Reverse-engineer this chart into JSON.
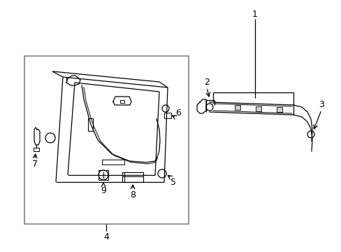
{
  "bg_color": "#ffffff",
  "line_color": "#000000",
  "box_color": "#777777",
  "fig_width": 4.89,
  "fig_height": 3.6,
  "dpi": 100,
  "label_fontsize": 9,
  "lw": 0.9
}
